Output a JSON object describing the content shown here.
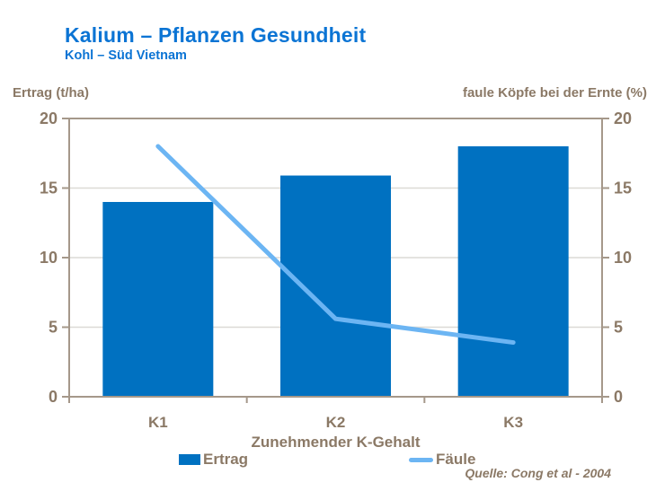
{
  "header": {
    "title": "Kalium – Pflanzen Gesundheit",
    "subtitle": "Kohl – Süd Vietnam"
  },
  "source": "Quelle:  Cong et al - 2004",
  "colors": {
    "bar": "#0071C1",
    "line": "#6CB5F3",
    "title_blue": "#0B74D4",
    "text_brown": "#8B7966",
    "axis": "#A5988A",
    "gridline": "#DCDAD6"
  },
  "chart_data": {
    "type": "bar",
    "title": "Kalium – Pflanzen Gesundheit",
    "subtitle": "Kohl – Süd Vietnam",
    "categories": [
      "K1",
      "K2",
      "K3"
    ],
    "series": [
      {
        "name": "Ertrag",
        "type": "bar",
        "axis": "left",
        "values": [
          14,
          15.9,
          18
        ]
      },
      {
        "name": "Fäule",
        "type": "line",
        "axis": "right",
        "values": [
          18,
          5.6,
          3.9
        ]
      }
    ],
    "xlabel": "Zunehmender K-Gehalt",
    "ylabel_left": "Ertrag (t/ha)",
    "ylabel_right": "faule Köpfe bei der Ernte (%)",
    "ylim_left": [
      0,
      20
    ],
    "ylim_right": [
      0,
      20
    ],
    "y_ticks": [
      0,
      5,
      10,
      15,
      20
    ],
    "grid": true,
    "legend_position": "bottom",
    "source": "Quelle:  Cong et al - 2004"
  }
}
